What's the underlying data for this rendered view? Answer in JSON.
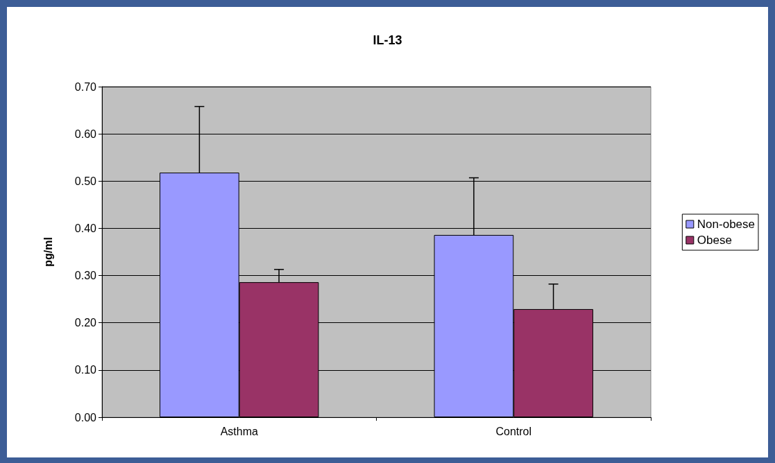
{
  "chart_data": {
    "type": "bar",
    "title": "IL-13",
    "ylabel": "pg/ml",
    "categories": [
      "Asthma",
      "Control"
    ],
    "series": [
      {
        "name": "Non-obese",
        "color": "#9999ff",
        "values": [
          0.518,
          0.386
        ],
        "errors": [
          [
            0.518,
            0.658
          ],
          [
            0.386,
            0.507
          ]
        ]
      },
      {
        "name": "Obese",
        "color": "#993366",
        "values": [
          0.286,
          0.229
        ],
        "errors": [
          [
            0.286,
            0.313
          ],
          [
            0.229,
            0.282
          ]
        ]
      }
    ],
    "ylim": [
      0,
      0.7
    ],
    "yticks": [
      {
        "value": 0,
        "label": "0.00"
      },
      {
        "value": 0.1,
        "label": "0.10"
      },
      {
        "value": 0.2,
        "label": "0.20"
      },
      {
        "value": 0.3,
        "label": "0.30"
      },
      {
        "value": 0.4,
        "label": "0.40"
      },
      {
        "value": 0.5,
        "label": "0.50"
      },
      {
        "value": 0.6,
        "label": "0.60"
      },
      {
        "value": 0.7,
        "label": "0.70"
      }
    ],
    "grid": "y",
    "legend": "right"
  }
}
